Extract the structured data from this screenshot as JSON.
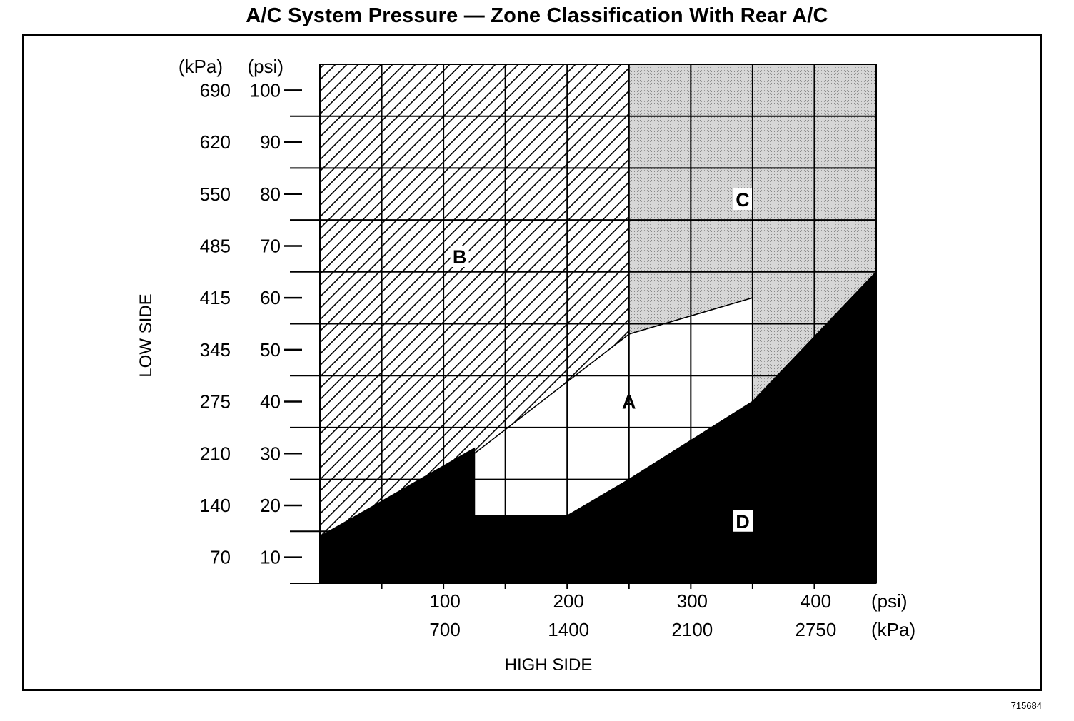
{
  "page": {
    "title": "A/C System Pressure — Zone Classification With Rear A/C",
    "figure_id": "715684"
  },
  "chart_data": {
    "type": "area",
    "title": "A/C System Pressure — Zone Classification With Rear A/C",
    "xlabel": "HIGH SIDE",
    "ylabel": "LOW SIDE",
    "xlim_psi": [
      0,
      450
    ],
    "ylim_psi": [
      5,
      105
    ],
    "x_ticks_psi": [
      100,
      200,
      300,
      400
    ],
    "x_ticks_kpa": [
      "700",
      "1400",
      "2100",
      "2750"
    ],
    "x_unit_psi": "(psi)",
    "x_unit_kpa": "(kPa)",
    "y_ticks_psi": [
      10,
      20,
      30,
      40,
      50,
      60,
      70,
      80,
      90,
      100
    ],
    "y_ticks_kpa": [
      "70",
      "140",
      "210",
      "275",
      "345",
      "415",
      "485",
      "550",
      "620",
      "690"
    ],
    "y_unit_kpa": "(kPa)",
    "y_unit_psi": "(psi)",
    "grid": true,
    "grid_x_psi": [
      50,
      100,
      150,
      200,
      250,
      300,
      350,
      400
    ],
    "grid_y_psi": [
      15,
      25,
      35,
      45,
      55,
      65,
      75,
      85,
      95
    ],
    "zones": [
      {
        "label": "A",
        "fill": "white",
        "polygon_psi": [
          [
            125,
            30
          ],
          [
            250,
            53
          ],
          [
            350,
            60
          ],
          [
            350,
            40
          ],
          [
            250,
            25
          ],
          [
            200,
            18
          ],
          [
            125,
            18
          ]
        ]
      },
      {
        "label": "B",
        "fill": "diagonal-hatch",
        "polygon_psi": [
          [
            0,
            14
          ],
          [
            0,
            105
          ],
          [
            250,
            105
          ],
          [
            250,
            53
          ],
          [
            125,
            30
          ],
          [
            125,
            31
          ]
        ]
      },
      {
        "label": "C",
        "fill": "stipple",
        "polygon_psi": [
          [
            250,
            105
          ],
          [
            450,
            105
          ],
          [
            450,
            65
          ],
          [
            350,
            40
          ],
          [
            350,
            60
          ],
          [
            250,
            53
          ]
        ]
      },
      {
        "label": "D",
        "fill": "black",
        "polygon_psi": [
          [
            0,
            5
          ],
          [
            0,
            14
          ],
          [
            125,
            31
          ],
          [
            125,
            18
          ],
          [
            200,
            18
          ],
          [
            250,
            25
          ],
          [
            350,
            40
          ],
          [
            450,
            65
          ],
          [
            450,
            5
          ]
        ]
      }
    ],
    "zone_label_positions_psi": {
      "A": [
        250,
        40
      ],
      "B": [
        113,
        68
      ],
      "C": [
        342,
        79
      ],
      "D": [
        342,
        17
      ]
    },
    "colors": {
      "black": "#000000",
      "stipple_bg": "#d8d8d8",
      "hatch": "#000000",
      "white": "#ffffff"
    }
  }
}
